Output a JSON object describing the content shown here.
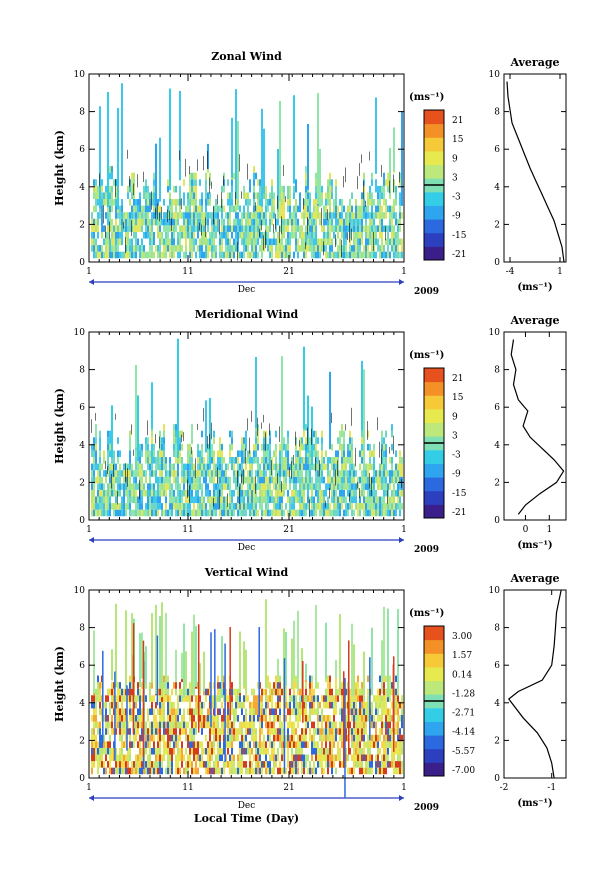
{
  "shared": {
    "x_ticks": [
      "1",
      "11",
      "21",
      "1"
    ],
    "month": "Dec",
    "year": "2009",
    "xlabel": "Local Time (Day)",
    "ylabel": "Height (km)",
    "unit": "(ms⁻¹)",
    "average_title": "Average"
  },
  "chart_data": [
    {
      "type": "heatmap",
      "title": "Zonal Wind",
      "ylabel": "Height (km)",
      "y_ticks": [
        0,
        2,
        4,
        6,
        8,
        10
      ],
      "ylim": [
        0,
        10
      ],
      "colorbar_ticks": [
        "21",
        "15",
        "9",
        "3",
        "-3",
        "-9",
        "-15",
        "-21"
      ],
      "colorbar_unit": "(ms⁻¹)"
    },
    {
      "type": "line",
      "title": "Average",
      "xlabel": "(ms⁻¹)",
      "x_ticks": [
        "-4",
        "1"
      ],
      "xlim": [
        -4.6,
        1.6
      ],
      "ylim": [
        0,
        10
      ],
      "y_ticks": [
        0,
        2,
        4,
        6,
        8,
        10
      ],
      "x": [
        1.4,
        1.2,
        0.8,
        0.4,
        -0.2,
        -0.8,
        -1.4,
        -2.0,
        -2.6,
        -3.2,
        -3.8,
        -4.0,
        -4.2,
        -4.3
      ],
      "y": [
        0.0,
        0.8,
        1.5,
        2.2,
        2.9,
        3.6,
        4.3,
        5.0,
        5.8,
        6.6,
        7.4,
        8.1,
        8.8,
        9.6
      ]
    },
    {
      "type": "heatmap",
      "title": "Meridional Wind",
      "ylabel": "Height (km)",
      "y_ticks": [
        0,
        2,
        4,
        6,
        8,
        10
      ],
      "ylim": [
        0,
        10
      ],
      "colorbar_ticks": [
        "21",
        "15",
        "9",
        "3",
        "-3",
        "-9",
        "-15",
        "-21"
      ],
      "colorbar_unit": "(ms⁻¹)"
    },
    {
      "type": "line",
      "title": "Average",
      "xlabel": "(ms⁻¹)",
      "x_ticks": [
        "0",
        "1"
      ],
      "xlim": [
        -0.9,
        1.7
      ],
      "ylim": [
        0,
        10
      ],
      "y_ticks": [
        0,
        2,
        4,
        6,
        8,
        10
      ],
      "x": [
        -0.3,
        0.0,
        0.6,
        1.3,
        1.6,
        1.2,
        0.7,
        0.2,
        -0.1,
        0.1,
        -0.3,
        -0.5,
        -0.4,
        -0.6,
        -0.5
      ],
      "y": [
        0.3,
        0.8,
        1.4,
        2.0,
        2.6,
        3.2,
        3.8,
        4.4,
        5.0,
        5.8,
        6.4,
        7.2,
        8.0,
        8.8,
        9.6
      ]
    },
    {
      "type": "heatmap",
      "title": "Vertical Wind",
      "ylabel": "Height (km)",
      "y_ticks": [
        0,
        2,
        4,
        6,
        8,
        10
      ],
      "ylim": [
        0,
        10
      ],
      "colorbar_ticks": [
        "3.00",
        "1.57",
        "0.14",
        "-1.28",
        "-2.71",
        "-4.14",
        "-5.57",
        "-7.00"
      ],
      "colorbar_unit": "(ms⁻¹)"
    },
    {
      "type": "line",
      "title": "Average",
      "xlabel": "(ms⁻¹)",
      "x_ticks": [
        "-2",
        "-1"
      ],
      "xlim": [
        -2.0,
        -0.7
      ],
      "ylim": [
        0,
        10
      ],
      "y_ticks": [
        0,
        2,
        4,
        6,
        8,
        10
      ],
      "x": [
        -0.95,
        -1.0,
        -1.1,
        -1.3,
        -1.6,
        -1.9,
        -1.7,
        -1.2,
        -1.0,
        -0.95,
        -0.92,
        -0.9,
        -0.85,
        -0.8
      ],
      "y": [
        0.0,
        0.8,
        1.6,
        2.4,
        3.2,
        4.2,
        4.6,
        5.2,
        6.0,
        7.0,
        8.0,
        8.8,
        9.4,
        10.0
      ]
    }
  ]
}
